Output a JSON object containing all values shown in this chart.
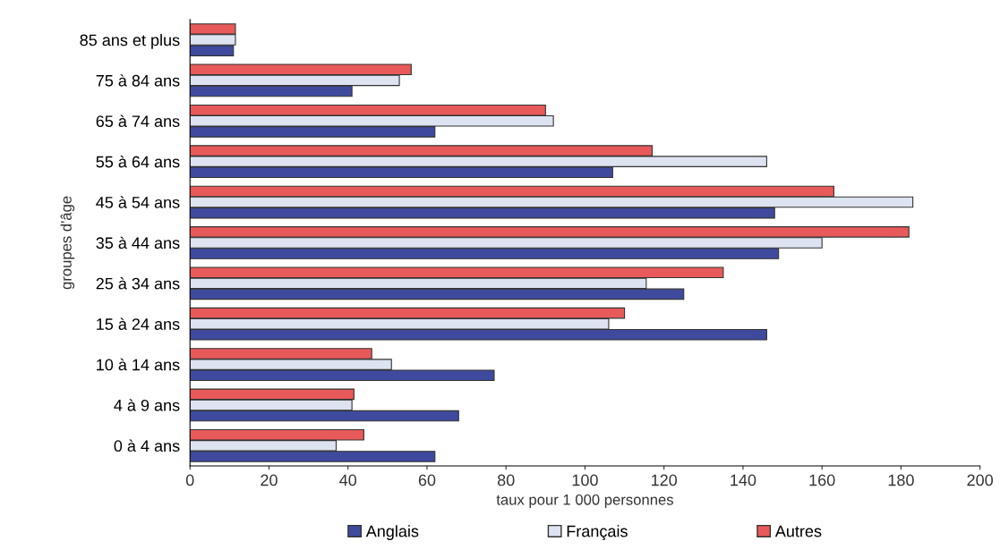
{
  "chart_data": {
    "type": "bar",
    "orientation": "horizontal",
    "xlabel": "taux pour 1 000 personnes",
    "ylabel": "groupes d'âge",
    "categories": [
      "85 ans et plus",
      "75 à 84 ans",
      "65 à 74 ans",
      "55 à 64 ans",
      "45 à 54 ans",
      "35 à 44 ans",
      "25 à 34 ans",
      "15 à 24 ans",
      "10 à 14 ans",
      "4 à 9 ans",
      "0 à 4 ans"
    ],
    "series": [
      {
        "name": "Anglais",
        "color": "#3f4a9e",
        "values": [
          11,
          41,
          62,
          107,
          148,
          149,
          125,
          146,
          77,
          68,
          62
        ]
      },
      {
        "name": "Français",
        "color": "#dde3f0",
        "values": [
          11.5,
          53,
          92,
          146,
          183,
          160,
          115.5,
          106,
          51,
          41,
          37
        ]
      },
      {
        "name": "Autres",
        "color": "#e85a5a",
        "values": [
          11.5,
          56,
          90,
          117,
          163,
          182,
          135,
          110,
          46,
          41.5,
          44
        ]
      }
    ],
    "xlim": [
      0,
      200
    ],
    "xticks": [
      0,
      20,
      40,
      60,
      80,
      100,
      120,
      140,
      160,
      180,
      200
    ],
    "grid": false,
    "legend": "bottom"
  }
}
